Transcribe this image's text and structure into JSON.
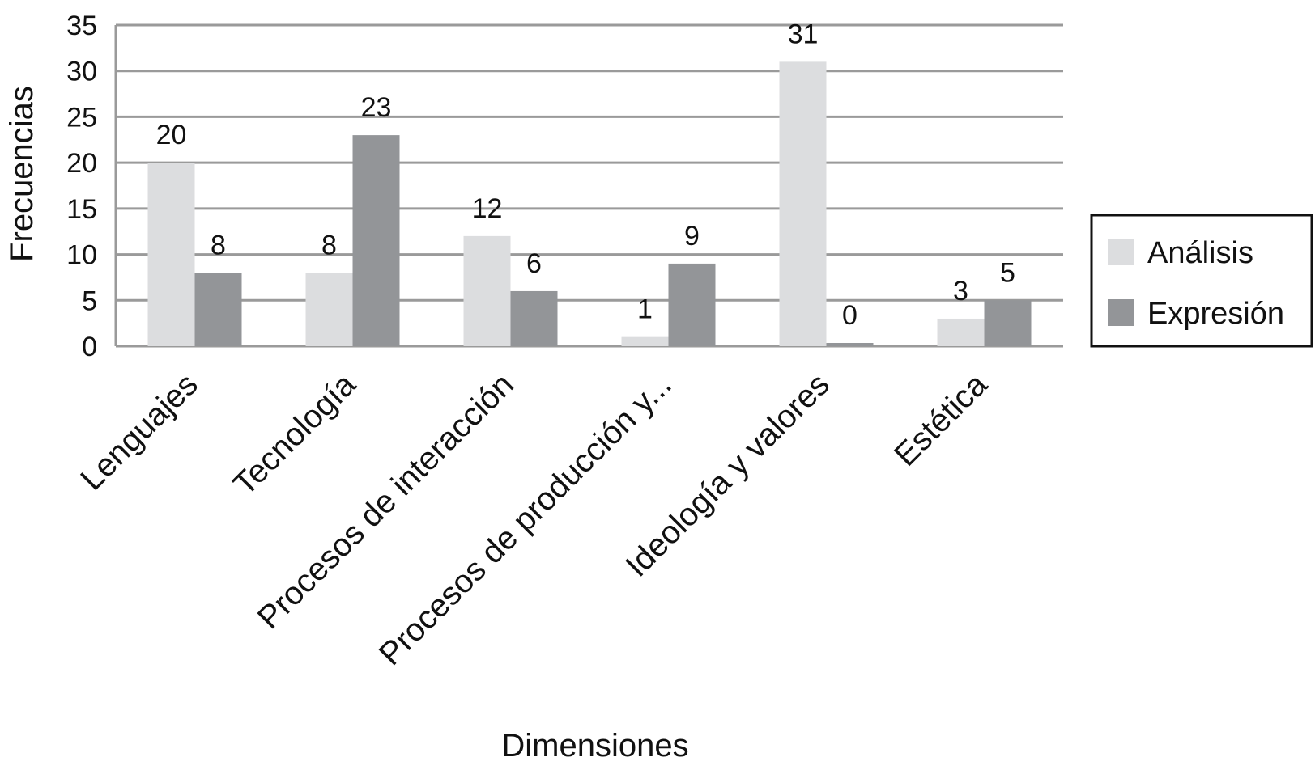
{
  "chart_data": {
    "type": "bar",
    "title": "",
    "xlabel": "Dimensiones",
    "ylabel": "Frecuencias",
    "ylim": [
      0,
      35
    ],
    "yticks": [
      0,
      5,
      10,
      15,
      20,
      25,
      30,
      35
    ],
    "grid": true,
    "legend_position": "right",
    "categories": [
      "Lenguajes",
      "Tecnología",
      "Procesos de interacción",
      "Procesos de producción y...",
      "Ideología y valores",
      "Estética"
    ],
    "series": [
      {
        "name": "Análisis",
        "color": "#dcdddf",
        "values": [
          20,
          8,
          12,
          1,
          31,
          3
        ]
      },
      {
        "name": "Expresión",
        "color": "#939598",
        "values": [
          8,
          23,
          6,
          9,
          0,
          5
        ]
      }
    ]
  }
}
